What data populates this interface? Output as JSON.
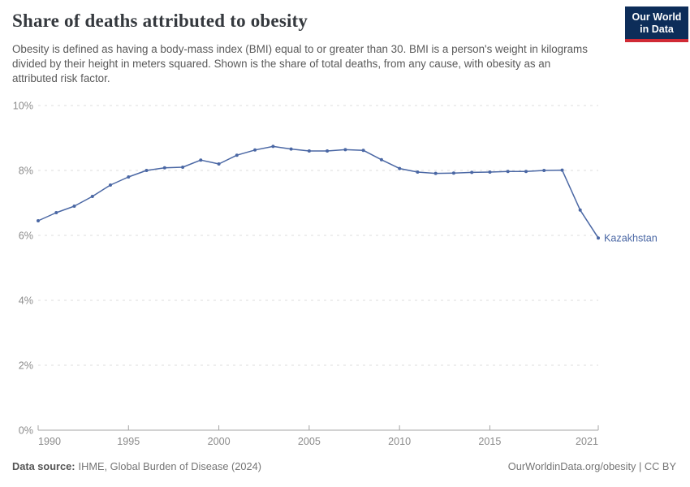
{
  "header": {
    "title": "Share of deaths attributed to obesity",
    "subtitle": "Obesity is defined as having a body-mass index (BMI) equal to or greater than 30. BMI is a person's weight in kilograms divided by their height in meters squared. Shown is the share of total deaths, from any cause, with obesity as an attributed risk factor.",
    "logo": {
      "line1": "Our World",
      "line2": "in Data",
      "background": "#0d2d59",
      "stripe": "#d02a35",
      "text_color": "#ffffff"
    }
  },
  "chart_data": {
    "type": "line",
    "title": "Share of deaths attributed to obesity",
    "xlabel": "",
    "ylabel": "",
    "x": [
      1990,
      1991,
      1992,
      1993,
      1994,
      1995,
      1996,
      1997,
      1998,
      1999,
      2000,
      2001,
      2002,
      2003,
      2004,
      2005,
      2006,
      2007,
      2008,
      2009,
      2010,
      2011,
      2012,
      2013,
      2014,
      2015,
      2016,
      2017,
      2018,
      2019,
      2020,
      2021
    ],
    "series": [
      {
        "name": "Kazakhstan",
        "color": "#4a67a4",
        "values": [
          6.45,
          6.7,
          6.9,
          7.2,
          7.55,
          7.8,
          8.0,
          8.08,
          8.1,
          8.32,
          8.2,
          8.47,
          8.63,
          8.74,
          8.66,
          8.6,
          8.6,
          8.64,
          8.62,
          8.33,
          8.06,
          7.95,
          7.91,
          7.92,
          7.94,
          7.95,
          7.97,
          7.97,
          8.0,
          8.01,
          6.78,
          5.92
        ]
      }
    ],
    "ylim": [
      0,
      10
    ],
    "yticks": [
      0,
      2,
      4,
      6,
      8,
      10
    ],
    "ytick_suffix": "%",
    "xticks": [
      1990,
      1995,
      2000,
      2005,
      2010,
      2015,
      2021
    ],
    "grid": {
      "horizontal": true,
      "style": "dashed",
      "color": "#dcdcdc"
    },
    "axis_color": "#a5a5a5",
    "tick_label_color": "#8b8b8b",
    "legend_position": "end-of-line label",
    "markers": true
  },
  "footer": {
    "source_label": "Data source:",
    "source_value": "IHME, Global Burden of Disease (2024)",
    "rights": "OurWorldinData.org/obesity | CC BY"
  }
}
